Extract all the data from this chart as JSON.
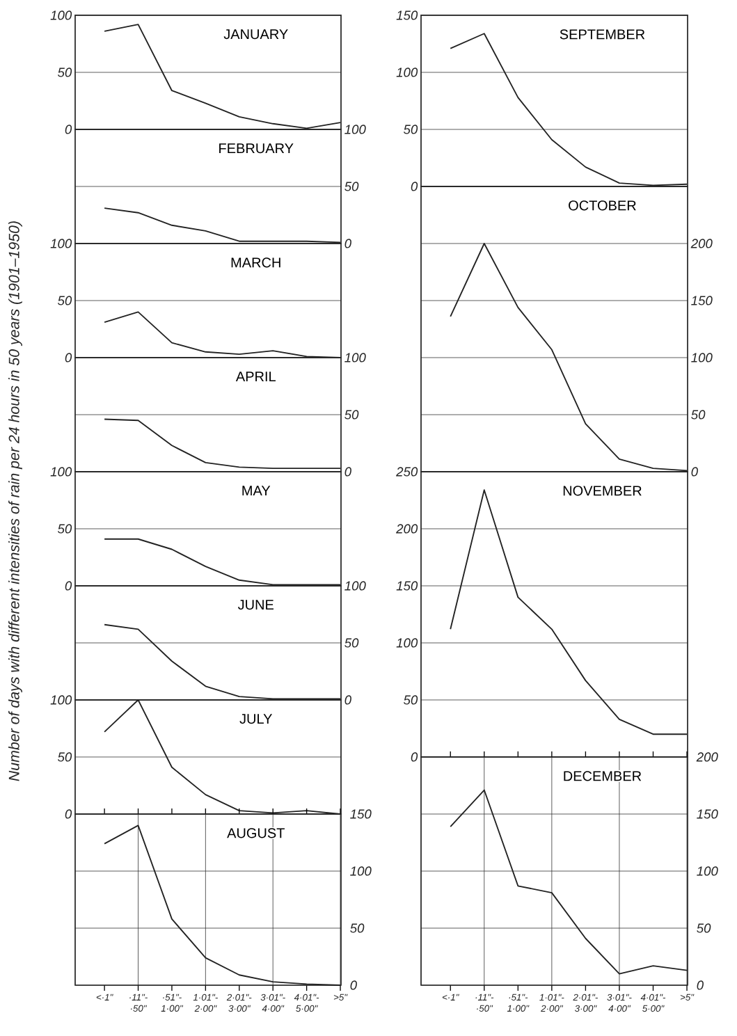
{
  "chart_data": [
    {
      "type": "line",
      "title": "JANUARY",
      "categories": [
        null,
        null,
        null,
        null,
        null,
        null,
        null,
        null
      ],
      "ylim": [
        0,
        100
      ],
      "yticks": [
        0,
        50,
        100
      ],
      "grid": true,
      "series": [
        {
          "color": "#222222",
          "values": [
            86,
            92,
            34,
            23,
            11,
            5,
            1,
            6
          ]
        }
      ]
    },
    {
      "type": "line",
      "title": "FEBRUARY",
      "categories": [
        null,
        null,
        null,
        null,
        null,
        null,
        null,
        null
      ],
      "ylim": [
        0,
        100
      ],
      "yticks": [
        0,
        50,
        100
      ],
      "grid": true,
      "series": [
        {
          "color": "#222222",
          "values": [
            31,
            27,
            16,
            11,
            2,
            2,
            2,
            1
          ]
        }
      ]
    },
    {
      "type": "line",
      "title": "MARCH",
      "categories": [
        null,
        null,
        null,
        null,
        null,
        null,
        null,
        null
      ],
      "ylim": [
        0,
        100
      ],
      "yticks": [
        0,
        50,
        100
      ],
      "grid": true,
      "series": [
        {
          "color": "#222222",
          "values": [
            31,
            40,
            13,
            5,
            3,
            6,
            1,
            0
          ]
        }
      ]
    },
    {
      "type": "line",
      "title": "APRIL",
      "categories": [
        null,
        null,
        null,
        null,
        null,
        null,
        null,
        null
      ],
      "ylim": [
        0,
        100
      ],
      "yticks": [
        0,
        50,
        100
      ],
      "grid": true,
      "series": [
        {
          "color": "#222222",
          "values": [
            46,
            45,
            23,
            8,
            4,
            3,
            3,
            3
          ]
        }
      ]
    },
    {
      "type": "line",
      "title": "MAY",
      "categories": [
        null,
        null,
        null,
        null,
        null,
        null,
        null,
        null
      ],
      "ylim": [
        0,
        100
      ],
      "yticks": [
        0,
        50,
        100
      ],
      "grid": true,
      "series": [
        {
          "color": "#222222",
          "values": [
            41,
            41,
            32,
            17,
            5,
            1,
            1,
            1
          ]
        }
      ]
    },
    {
      "type": "line",
      "title": "JUNE",
      "categories": [
        null,
        null,
        null,
        null,
        null,
        null,
        null,
        null
      ],
      "ylim": [
        0,
        100
      ],
      "yticks": [
        0,
        50,
        100
      ],
      "grid": true,
      "series": [
        {
          "color": "#222222",
          "values": [
            66,
            62,
            34,
            12,
            3,
            1,
            1,
            1
          ]
        }
      ]
    },
    {
      "type": "line",
      "title": "JULY",
      "categories": [
        null,
        null,
        null,
        null,
        null,
        null,
        null,
        null
      ],
      "ylim": [
        0,
        100
      ],
      "yticks": [
        0,
        50,
        100
      ],
      "grid": true,
      "series": [
        {
          "color": "#222222",
          "values": [
            72,
            100,
            41,
            17,
            3,
            1,
            3,
            0
          ]
        }
      ]
    },
    {
      "type": "line",
      "title": "AUGUST",
      "categories": [
        "<·1\"",
        "·11\"- ·50\"",
        "·51\"- 1·00\"",
        "1·01\"- 2·00\"",
        "2·01\"- 3·00\"",
        "3·01\"- 4·00\"",
        "4·01\"- 5·00\"",
        ">5\""
      ],
      "ylim": [
        0,
        150
      ],
      "yticks": [
        0,
        50,
        100,
        150
      ],
      "grid": true,
      "series": [
        {
          "color": "#222222",
          "values": [
            124,
            140,
            58,
            24,
            9,
            3,
            1,
            0
          ]
        }
      ]
    },
    {
      "type": "line",
      "title": "SEPTEMBER",
      "categories": [
        null,
        null,
        null,
        null,
        null,
        null,
        null,
        null
      ],
      "ylim": [
        0,
        150
      ],
      "yticks": [
        0,
        50,
        100,
        150
      ],
      "grid": true,
      "series": [
        {
          "color": "#222222",
          "values": [
            121,
            134,
            78,
            41,
            17,
            3,
            1,
            2
          ]
        }
      ]
    },
    {
      "type": "line",
      "title": "OCTOBER",
      "categories": [
        null,
        null,
        null,
        null,
        null,
        null,
        null,
        null
      ],
      "ylim": [
        0,
        250
      ],
      "yticks": [
        0,
        50,
        100,
        150,
        200
      ],
      "grid": true,
      "series": [
        {
          "color": "#222222",
          "values": [
            136,
            200,
            144,
            107,
            42,
            11,
            3,
            1
          ]
        }
      ]
    },
    {
      "type": "line",
      "title": "NOVEMBER",
      "categories": [
        null,
        null,
        null,
        null,
        null,
        null,
        null,
        null
      ],
      "ylim": [
        0,
        250
      ],
      "yticks": [
        0,
        50,
        100,
        150,
        200,
        250
      ],
      "grid": true,
      "series": [
        {
          "color": "#222222",
          "values": [
            112,
            234,
            140,
            112,
            67,
            33,
            20,
            20
          ]
        }
      ]
    },
    {
      "type": "line",
      "title": "DECEMBER",
      "categories": [
        "<·1\"",
        "·11\"- ·50\"",
        "·51\"- 1·00\"",
        "1·01\"- 2·00\"",
        "2·01\"- 3·00\"",
        "3·01\"- 4·00\"",
        "4·01\"- 5·00\"",
        ">5\""
      ],
      "ylim": [
        0,
        200
      ],
      "yticks": [
        0,
        50,
        100,
        150,
        200
      ],
      "grid": true,
      "series": [
        {
          "color": "#222222",
          "values": [
            139,
            171,
            87,
            81,
            41,
            10,
            17,
            13
          ]
        }
      ]
    },
    {
      "type": "other",
      "ylabel": "Number of days with different intensities of rain per 24 hours in 50 years (1901–1950)"
    }
  ]
}
